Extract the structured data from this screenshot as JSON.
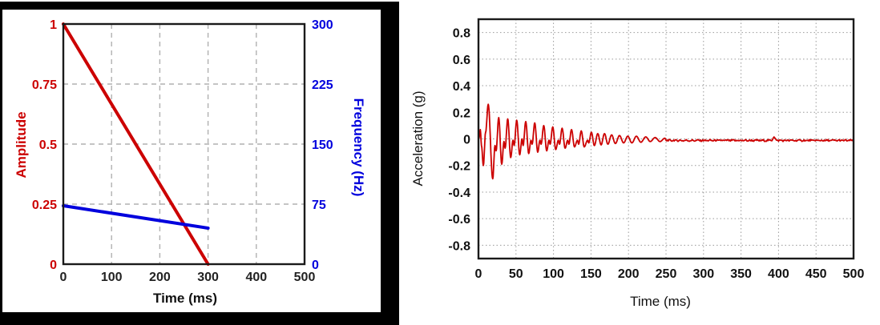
{
  "page": {
    "background": "#ffffff",
    "left_panel_frame_color": "#000000"
  },
  "chart_data": [
    {
      "id": "sweep-profile",
      "type": "line",
      "title": "",
      "xlabel": "Time (ms)",
      "x_range": [
        0,
        500
      ],
      "x_tick_values": [
        0,
        100,
        200,
        300,
        400,
        500
      ],
      "x_tick_labels": [
        "0",
        "100",
        "200",
        "300",
        "400",
        "500"
      ],
      "grid": "dashed",
      "grid_color": "#b0b0b0",
      "frame_color": "#1a1a1a",
      "left_axis": {
        "label": "Amplitude",
        "color": "#cc0000",
        "range": [
          0,
          1
        ],
        "tick_values": [
          0,
          0.25,
          0.5,
          0.75,
          1
        ],
        "tick_labels": [
          "0",
          "0.25",
          "0.5",
          "0.75",
          "1"
        ]
      },
      "right_axis": {
        "label": "Frequency (Hz)",
        "color": "#0000dd",
        "range": [
          0,
          300
        ],
        "tick_values": [
          0,
          75,
          150,
          225,
          300
        ],
        "tick_labels": [
          "0",
          "75",
          "150",
          "225",
          "300"
        ]
      },
      "series": [
        {
          "name": "amplitude",
          "axis": "left",
          "color": "#cc0000",
          "points": [
            [
              0,
              1
            ],
            [
              300,
              0
            ]
          ]
        },
        {
          "name": "frequency",
          "axis": "right",
          "color": "#0000dd",
          "points": [
            [
              0,
              73
            ],
            [
              300,
              45
            ]
          ]
        }
      ]
    },
    {
      "id": "acceleration-response",
      "type": "line",
      "title": "",
      "xlabel": "Time (ms)",
      "x_range": [
        0,
        500
      ],
      "x_tick_values": [
        0,
        50,
        100,
        150,
        200,
        250,
        300,
        350,
        400,
        450,
        500
      ],
      "x_tick_labels": [
        "0",
        "50",
        "100",
        "150",
        "200",
        "250",
        "300",
        "350",
        "400",
        "450",
        "500"
      ],
      "grid": "dotted",
      "grid_color": "#999999",
      "frame_color": "#1a1a1a",
      "y_axis": {
        "label": "Acceleration (g)",
        "color": "#111111",
        "range": [
          -0.9,
          0.9
        ],
        "tick_values": [
          0.8,
          0.6,
          0.4,
          0.2,
          0,
          -0.2,
          -0.4,
          -0.6,
          -0.8
        ],
        "tick_labels": [
          "0.8",
          "0.6",
          "0.4",
          "0.2",
          "0",
          "-0.2",
          "-0.4",
          "-0.6",
          "-0.8"
        ]
      },
      "series": [
        {
          "name": "acceleration",
          "color": "#cc0000",
          "extrema": [
            [
              0.5,
              0
            ],
            [
              2.5,
              0.07
            ],
            [
              4,
              -0.05
            ],
            [
              6.5,
              -0.2
            ],
            [
              9.5,
              0.05
            ],
            [
              13,
              0.26
            ],
            [
              19,
              -0.3
            ],
            [
              22,
              -0.05
            ],
            [
              23.5,
              -0.09
            ],
            [
              27,
              0.16
            ],
            [
              31,
              -0.19
            ],
            [
              34,
              -0.02
            ],
            [
              35.5,
              -0.07
            ],
            [
              39,
              0.15
            ],
            [
              43,
              -0.14
            ],
            [
              46,
              -0.01
            ],
            [
              47.5,
              -0.05
            ],
            [
              51,
              0.14
            ],
            [
              55,
              -0.12
            ],
            [
              58,
              0
            ],
            [
              59.5,
              -0.05
            ],
            [
              63,
              0.13
            ],
            [
              67,
              -0.11
            ],
            [
              70,
              -0.01
            ],
            [
              71.5,
              -0.04
            ],
            [
              75,
              0.12
            ],
            [
              79,
              -0.1
            ],
            [
              82,
              -0.01
            ],
            [
              83.5,
              -0.04
            ],
            [
              87,
              0.1
            ],
            [
              91,
              -0.09
            ],
            [
              94,
              -0.01
            ],
            [
              95.5,
              -0.04
            ],
            [
              99,
              0.09
            ],
            [
              103,
              -0.08
            ],
            [
              106.5,
              -0.01
            ],
            [
              108,
              -0.04
            ],
            [
              111.5,
              0.08
            ],
            [
              115.5,
              -0.07
            ],
            [
              119,
              -0.01
            ],
            [
              120.5,
              -0.04
            ],
            [
              124,
              0.07
            ],
            [
              128,
              -0.06
            ],
            [
              132,
              -0.01
            ],
            [
              133.5,
              -0.04
            ],
            [
              137,
              0.06
            ],
            [
              141,
              -0.06
            ],
            [
              145.5,
              -0.01
            ],
            [
              147,
              -0.03
            ],
            [
              150.5,
              0.05
            ],
            [
              154.5,
              -0.05
            ],
            [
              159,
              0.04
            ],
            [
              163.5,
              -0.045
            ],
            [
              168,
              0.04
            ],
            [
              172.5,
              -0.04
            ],
            [
              177.5,
              0.03
            ],
            [
              182.5,
              -0.035
            ],
            [
              188,
              0.025
            ],
            [
              193.5,
              -0.03
            ],
            [
              199,
              0.02
            ],
            [
              204.5,
              -0.03
            ],
            [
              210.5,
              0.02
            ],
            [
              216.5,
              -0.025
            ],
            [
              223,
              0.015
            ],
            [
              229,
              -0.02
            ],
            [
              235.5,
              0.01
            ],
            [
              242,
              -0.02
            ],
            [
              248.5,
              0.005
            ],
            [
              250,
              -0.005
            ]
          ],
          "tail": {
            "start_ms": 250,
            "end_ms": 500,
            "baseline_g": -0.012,
            "noise_g": 0.012,
            "blip": {
              "t_ms": 394,
              "amp_g": 0.028
            }
          }
        }
      ]
    }
  ]
}
